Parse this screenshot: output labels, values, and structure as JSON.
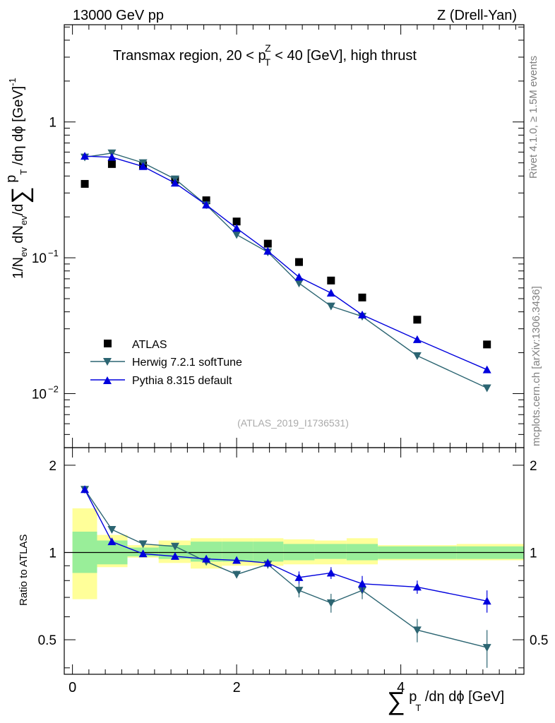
{
  "header": {
    "energy_label": "13000 GeV pp",
    "process_label": "Z (Drell-Yan)"
  },
  "side": {
    "rivet_label": "Rivet 4.1.0, ≥ 1.5M events",
    "site_label": "mcplots.cern.ch [arXiv:1306.3436]"
  },
  "analysis_tag": "(ATLAS_2019_I1736531)",
  "upper_axis": {
    "ylabel_main": "1/N",
    "ylabel_sub1": "ev",
    "ylabel_mid": " dN",
    "ylabel_sub2": "ev",
    "ylabel_end": "/d",
    "ylabel_sum": "∑",
    "ylabel_p": " p",
    "ylabel_subT": "T",
    "ylabel_tail": " /dη dϕ  [GeV]",
    "ylabel_sup": "-1",
    "ticks": [
      {
        "value": 0.01,
        "mantissa": "10",
        "exponent": "−2"
      },
      {
        "value": 0.1,
        "mantissa": "10",
        "exponent": "−1"
      },
      {
        "value": 1,
        "mantissa": "1",
        "exponent": ""
      }
    ]
  },
  "lower_axis": {
    "ylabel": "Ratio to ATLAS",
    "ticks": [
      "0.5",
      "1",
      "2"
    ]
  },
  "x_axis": {
    "label_sum": "∑",
    "label_p": " p",
    "label_subT": "T",
    "label_tail": " /dη dϕ [GeV]",
    "ticks": [
      "0",
      "2",
      "4"
    ]
  },
  "chart_data": {
    "type": "scatter",
    "title": "Transmax region, 20 < p",
    "title_sup": "Z",
    "title_sub": "T",
    "title_tail": " < 40 [GeV], high thrust",
    "x_range": [
      -0.1,
      5.5
    ],
    "upper_ylim": [
      0.004,
      5.2
    ],
    "ratio_ylim": [
      0.38,
      2.3
    ],
    "x": [
      0.15,
      0.48,
      0.86,
      1.25,
      1.63,
      2.0,
      2.38,
      2.76,
      3.15,
      3.53,
      4.2,
      5.05
    ],
    "bin_edges": [
      0.0,
      0.3,
      0.67,
      1.05,
      1.44,
      1.82,
      2.2,
      2.57,
      2.95,
      3.34,
      3.72,
      4.68,
      5.5
    ],
    "band_inner_lo": [
      0.85,
      0.91,
      0.97,
      0.95,
      0.93,
      0.93,
      0.93,
      0.94,
      0.95,
      0.94,
      0.95,
      0.95
    ],
    "band_inner_hi": [
      1.18,
      1.1,
      1.04,
      1.06,
      1.09,
      1.09,
      1.09,
      1.07,
      1.07,
      1.07,
      1.05,
      1.05
    ],
    "band_outer_lo": [
      0.69,
      0.89,
      0.96,
      0.92,
      0.88,
      0.9,
      0.9,
      0.91,
      0.91,
      0.91,
      0.94,
      0.94
    ],
    "band_outer_hi": [
      1.42,
      1.15,
      1.06,
      1.1,
      1.12,
      1.12,
      1.12,
      1.11,
      1.1,
      1.12,
      1.06,
      1.07
    ],
    "series": [
      {
        "name": "ATLAS",
        "color": "#000000",
        "marker": "square",
        "values": [
          0.35,
          0.49,
          0.48,
          0.375,
          0.265,
          0.185,
          0.127,
          0.093,
          0.068,
          0.051,
          0.035,
          0.023
        ],
        "ratio": [
          1,
          1,
          1,
          1,
          1,
          1,
          1,
          1,
          1,
          1,
          1,
          1
        ]
      },
      {
        "name": "Herwig 7.2.1 softTune",
        "color": "#2c6572",
        "marker": "triangle-down",
        "values": [
          0.55,
          0.59,
          0.5,
          0.38,
          0.245,
          0.148,
          0.11,
          0.065,
          0.044,
          0.037,
          0.019,
          0.011
        ],
        "ratio": [
          1.65,
          1.2,
          1.07,
          1.05,
          0.93,
          0.84,
          0.91,
          0.74,
          0.67,
          0.74,
          0.54,
          0.47
        ],
        "ratio_err": [
          0.02,
          0.015,
          0.015,
          0.015,
          0.02,
          0.025,
          0.03,
          0.04,
          0.05,
          0.05,
          0.05,
          0.07
        ]
      },
      {
        "name": "Pythia 8.315 default",
        "color": "#0000dd",
        "marker": "triangle-up",
        "values": [
          0.56,
          0.55,
          0.47,
          0.355,
          0.245,
          0.165,
          0.112,
          0.072,
          0.055,
          0.038,
          0.025,
          0.015
        ],
        "ratio": [
          1.65,
          1.09,
          0.99,
          0.97,
          0.95,
          0.94,
          0.92,
          0.82,
          0.85,
          0.78,
          0.76,
          0.68
        ],
        "ratio_err": [
          0.02,
          0.015,
          0.015,
          0.015,
          0.02,
          0.025,
          0.03,
          0.04,
          0.04,
          0.05,
          0.04,
          0.06
        ]
      }
    ]
  }
}
